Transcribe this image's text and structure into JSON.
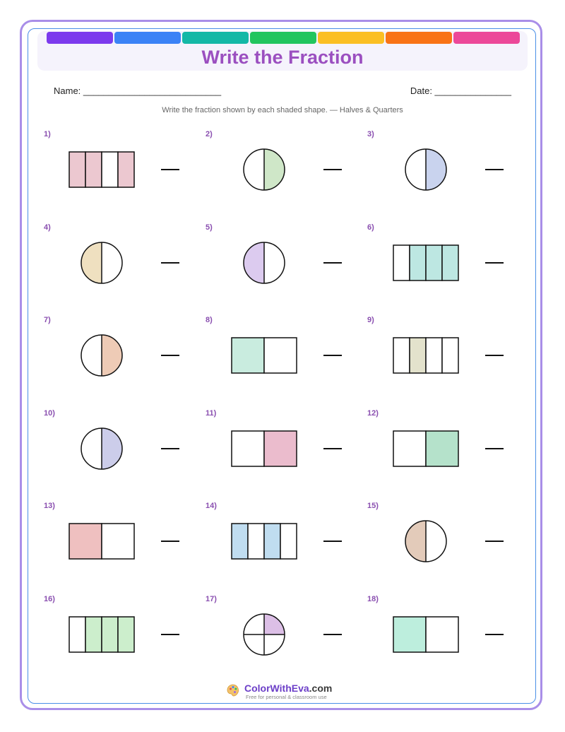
{
  "header": {
    "title": "Write the Fraction",
    "color_bars": [
      "#7c3aed",
      "#3b82f6",
      "#14b8a6",
      "#22c55e",
      "#fbbf24",
      "#f97316",
      "#ec4899"
    ]
  },
  "fields": {
    "name_label": "Name: ___________________________",
    "date_label": "Date: _______________"
  },
  "instructions": "Write the fraction shown by each shaded shape. — Halves & Quarters",
  "problems": [
    {
      "label": "1)",
      "shape": "rect",
      "parts": 4,
      "shaded": [
        0,
        1,
        3
      ],
      "color": "#ecc8d0"
    },
    {
      "label": "2)",
      "shape": "circle",
      "parts": 2,
      "shaded": [
        1
      ],
      "color": "#cfe7c8"
    },
    {
      "label": "3)",
      "shape": "circle",
      "parts": 2,
      "shaded": [
        1
      ],
      "color": "#c9d3ee"
    },
    {
      "label": "4)",
      "shape": "circle",
      "parts": 2,
      "shaded": [
        0
      ],
      "color": "#efe0c0"
    },
    {
      "label": "5)",
      "shape": "circle",
      "parts": 2,
      "shaded": [
        0
      ],
      "color": "#dccbef"
    },
    {
      "label": "6)",
      "shape": "rect",
      "parts": 4,
      "shaded": [
        1,
        2,
        3
      ],
      "color": "#bde7e2"
    },
    {
      "label": "7)",
      "shape": "circle",
      "parts": 2,
      "shaded": [
        1
      ],
      "color": "#eecbb6"
    },
    {
      "label": "8)",
      "shape": "rect",
      "parts": 2,
      "shaded": [
        0
      ],
      "color": "#c9ecdf"
    },
    {
      "label": "9)",
      "shape": "rect",
      "parts": 4,
      "shaded": [
        1
      ],
      "color": "#e3e2cc"
    },
    {
      "label": "10)",
      "shape": "circle",
      "parts": 2,
      "shaded": [
        1
      ],
      "color": "#cccdea"
    },
    {
      "label": "11)",
      "shape": "rect",
      "parts": 2,
      "shaded": [
        1
      ],
      "color": "#ebbccd"
    },
    {
      "label": "12)",
      "shape": "rect",
      "parts": 2,
      "shaded": [
        1
      ],
      "color": "#b5e2cb"
    },
    {
      "label": "13)",
      "shape": "rect",
      "parts": 2,
      "shaded": [
        0
      ],
      "color": "#efc0c0"
    },
    {
      "label": "14)",
      "shape": "rect",
      "parts": 4,
      "shaded": [
        0,
        2
      ],
      "color": "#c0ddf0"
    },
    {
      "label": "15)",
      "shape": "circle",
      "parts": 2,
      "shaded": [
        0
      ],
      "color": "#e3cbba"
    },
    {
      "label": "16)",
      "shape": "rect",
      "parts": 4,
      "shaded": [
        1,
        2,
        3
      ],
      "color": "#cceecc"
    },
    {
      "label": "17)",
      "shape": "circle",
      "parts": 4,
      "shaded": [
        0
      ],
      "color": "#dcbfe6"
    },
    {
      "label": "18)",
      "shape": "rect",
      "parts": 2,
      "shaded": [
        0
      ],
      "color": "#bdeedd"
    }
  ],
  "footer": {
    "brand_main": "ColorWithEva",
    "brand_suffix": ".com",
    "tagline": "Free for personal & classroom use"
  }
}
